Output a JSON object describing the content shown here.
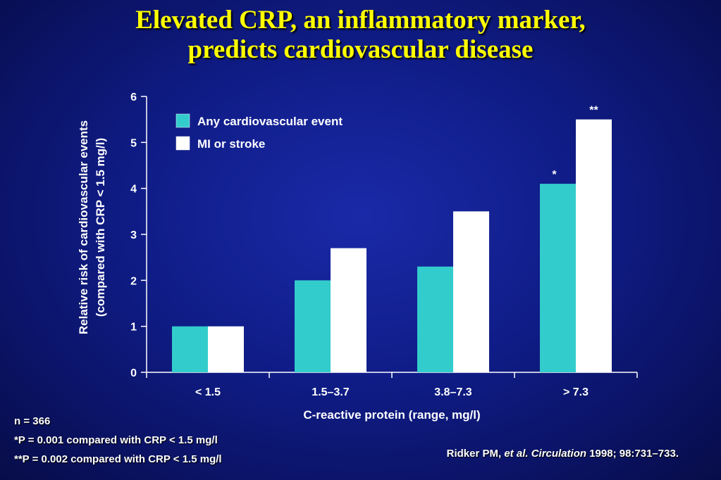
{
  "title": {
    "line1": "Elevated CRP, an inflammatory marker,",
    "line2": "predicts cardiovascular disease"
  },
  "colors": {
    "series1": "#33cccc",
    "series2": "#ffffff",
    "title": "#ffff00",
    "axis": "#ffffff"
  },
  "chart_data": {
    "type": "bar",
    "categories": [
      "< 1.5",
      "1.5–3.7",
      "3.8–7.3",
      "> 7.3"
    ],
    "series": [
      {
        "name": "Any cardiovascular event",
        "values": [
          1.0,
          2.0,
          2.3,
          4.1
        ]
      },
      {
        "name": "MI or stroke",
        "values": [
          1.0,
          2.7,
          3.5,
          5.5
        ]
      }
    ],
    "annotations": [
      {
        "category_index": 3,
        "series_index": 0,
        "text": "*"
      },
      {
        "category_index": 3,
        "series_index": 1,
        "text": "**"
      }
    ],
    "xlabel": "C-reactive protein (range, mg/l)",
    "ylabel_line1": "Relative risk of cardiovascular events",
    "ylabel_line2": "(compared with CRP < 1.5 mg/l)",
    "ylim": [
      0,
      6
    ],
    "yticks": [
      0,
      1,
      2,
      3,
      4,
      5,
      6
    ],
    "grid": false,
    "legend_position": "top-left"
  },
  "footnotes": {
    "n": "n = 366",
    "p1": "*P = 0.001 compared with CRP < 1.5 mg/l",
    "p2": "**P = 0.002 compared with CRP < 1.5 mg/l"
  },
  "citation": {
    "authors": "Ridker PM,",
    "etal": "et al.",
    "journal": "Circulation",
    "details": "1998; 98:731–733."
  }
}
